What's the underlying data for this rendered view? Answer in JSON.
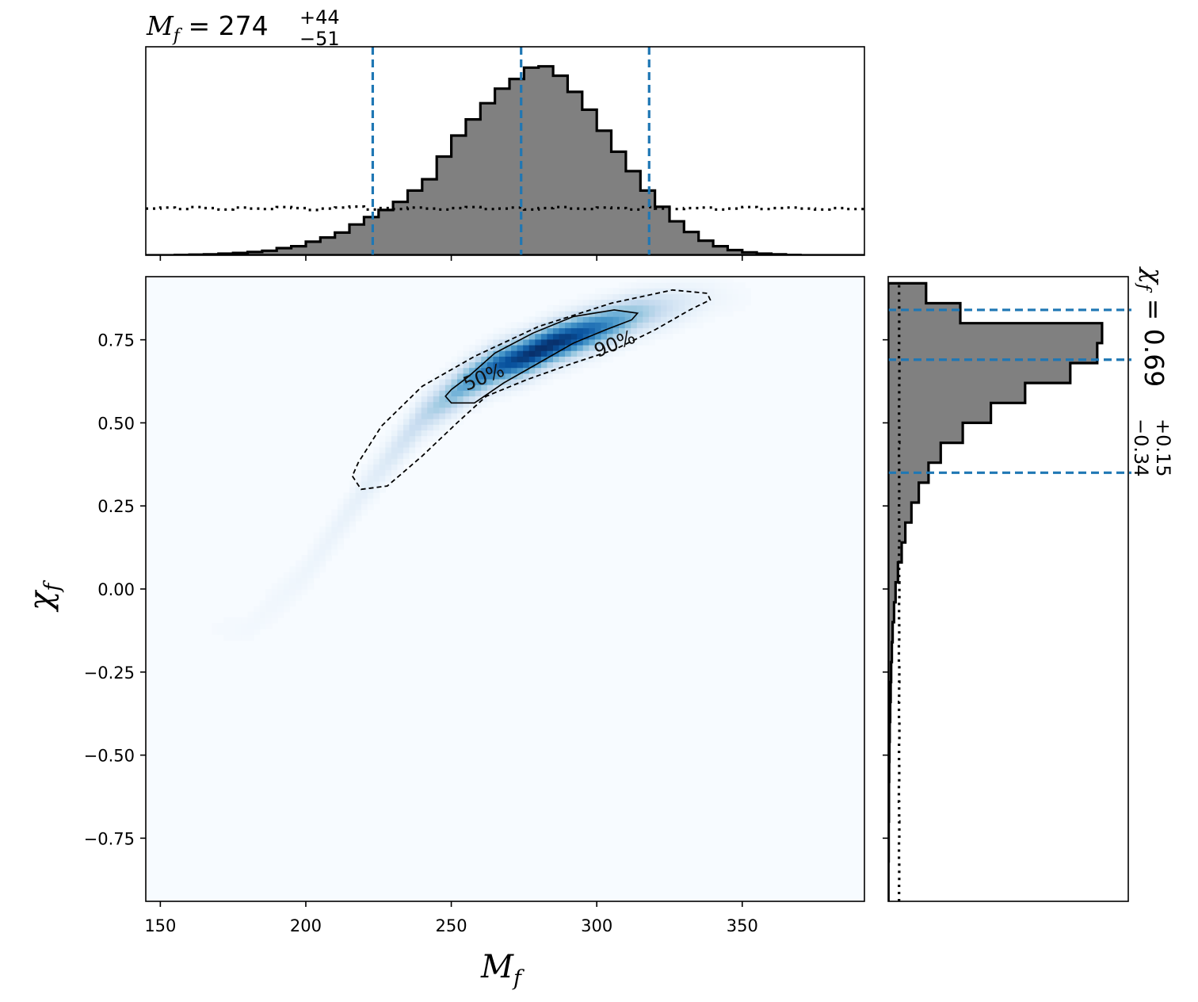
{
  "chart_data": {
    "type": "corner",
    "joint": {
      "type": "heatmap",
      "colormap": "Blues",
      "xlabel": "M_f",
      "ylabel": "χ_f",
      "xlim": [
        145,
        392
      ],
      "ylim": [
        -0.94,
        0.94
      ],
      "xticks": [
        150,
        200,
        250,
        300,
        350
      ],
      "xtick_labels": [
        "150",
        "200",
        "250",
        "300",
        "350"
      ],
      "yticks": [
        0.75,
        0.5,
        0.25,
        0.0,
        -0.25,
        -0.5,
        -0.75
      ],
      "ytick_labels": [
        "0.75",
        "0.50",
        "0.25",
        "0.00",
        "−0.25",
        "−0.50",
        "−0.75"
      ],
      "density_ridge": {
        "x": [
          180,
          200,
          220,
          240,
          255,
          265,
          275,
          285,
          295,
          305,
          315,
          325,
          340
        ],
        "y": [
          -0.12,
          0.05,
          0.3,
          0.52,
          0.62,
          0.67,
          0.7,
          0.74,
          0.77,
          0.8,
          0.83,
          0.85,
          0.88
        ]
      },
      "contours": [
        {
          "label": "50%",
          "style": "solid",
          "x": [
            248,
            250,
            258,
            268,
            280,
            292,
            303,
            312,
            314,
            306,
            292,
            278,
            265,
            256,
            250,
            248
          ],
          "y": [
            0.58,
            0.56,
            0.56,
            0.62,
            0.68,
            0.74,
            0.78,
            0.81,
            0.83,
            0.84,
            0.82,
            0.77,
            0.71,
            0.64,
            0.6,
            0.58
          ]
        },
        {
          "label": "90%",
          "style": "dashed",
          "x": [
            216,
            219,
            228,
            240,
            252,
            262,
            276,
            292,
            306,
            320,
            332,
            339,
            338,
            326,
            305,
            280,
            258,
            240,
            226,
            218,
            216
          ],
          "y": [
            0.34,
            0.3,
            0.31,
            0.4,
            0.5,
            0.58,
            0.63,
            0.68,
            0.72,
            0.78,
            0.84,
            0.87,
            0.89,
            0.9,
            0.86,
            0.79,
            0.7,
            0.61,
            0.49,
            0.38,
            0.34
          ]
        }
      ],
      "contour_label_positions": [
        {
          "text": "50%",
          "x": 262,
          "y": 0.62,
          "angle": -22
        },
        {
          "text": "90%",
          "x": 307,
          "y": 0.72,
          "angle": -22
        }
      ]
    },
    "top_marginal": {
      "type": "histogram",
      "title_main": "M",
      "title_sub": "f",
      "title_value": " = 274",
      "title_plus": "+44",
      "title_minus": "−51",
      "bin_edges": [
        145,
        150,
        155,
        160,
        165,
        170,
        175,
        180,
        185,
        190,
        195,
        200,
        205,
        210,
        215,
        220,
        225,
        230,
        235,
        240,
        245,
        250,
        255,
        260,
        265,
        270,
        275,
        280,
        285,
        290,
        295,
        300,
        305,
        310,
        315,
        320,
        325,
        330,
        335,
        340,
        345,
        350,
        355,
        360,
        365,
        370,
        375,
        380,
        385,
        392
      ],
      "counts": [
        0,
        0,
        1,
        2,
        3,
        5,
        7,
        10,
        14,
        22,
        28,
        42,
        55,
        70,
        95,
        118,
        140,
        165,
        200,
        235,
        305,
        370,
        420,
        470,
        515,
        545,
        580,
        584,
        555,
        505,
        450,
        385,
        320,
        260,
        200,
        150,
        105,
        72,
        45,
        28,
        16,
        9,
        5,
        3,
        1,
        0,
        0,
        0,
        0
      ],
      "prior_counts": [
        95,
        97,
        94,
        98,
        96,
        93,
        97,
        95,
        94,
        98,
        96,
        92,
        95,
        97,
        99,
        93,
        96,
        94,
        97,
        95,
        93,
        96,
        98,
        94,
        95,
        97,
        93,
        96,
        98,
        95,
        94,
        97,
        96,
        93,
        98,
        95,
        94,
        96,
        97,
        93,
        95,
        98,
        94,
        96,
        97,
        95,
        93,
        96,
        94
      ],
      "quantile_lines": [
        223,
        274,
        318
      ],
      "ymax": 620
    },
    "right_marginal": {
      "type": "histogram",
      "orientation": "horizontal",
      "label_main": "χ",
      "label_sub": "f",
      "label_value": " = 0.69",
      "label_plus": "+0.15",
      "label_minus": "−0.34",
      "bin_edges": [
        -0.94,
        -0.88,
        -0.82,
        -0.76,
        -0.7,
        -0.64,
        -0.58,
        -0.52,
        -0.46,
        -0.4,
        -0.34,
        -0.28,
        -0.22,
        -0.16,
        -0.1,
        -0.04,
        0.02,
        0.08,
        0.14,
        0.2,
        0.26,
        0.32,
        0.38,
        0.44,
        0.5,
        0.56,
        0.62,
        0.68,
        0.74,
        0.8,
        0.86,
        0.92
      ],
      "counts": [
        1,
        1,
        2,
        2,
        3,
        3,
        4,
        5,
        6,
        8,
        10,
        12,
        15,
        18,
        24,
        30,
        40,
        55,
        70,
        95,
        125,
        165,
        215,
        305,
        420,
        560,
        745,
        855,
        875,
        295,
        155
      ],
      "prior_counts": [
        148,
        150,
        147,
        151,
        149,
        146,
        150,
        148,
        152,
        147,
        149,
        151,
        146,
        150,
        148,
        152,
        149,
        147,
        151,
        148,
        150,
        149,
        147,
        151,
        148,
        150,
        152,
        147,
        149,
        150,
        148
      ],
      "quantile_lines": [
        0.35,
        0.69,
        0.84
      ],
      "xmax": 940
    }
  }
}
